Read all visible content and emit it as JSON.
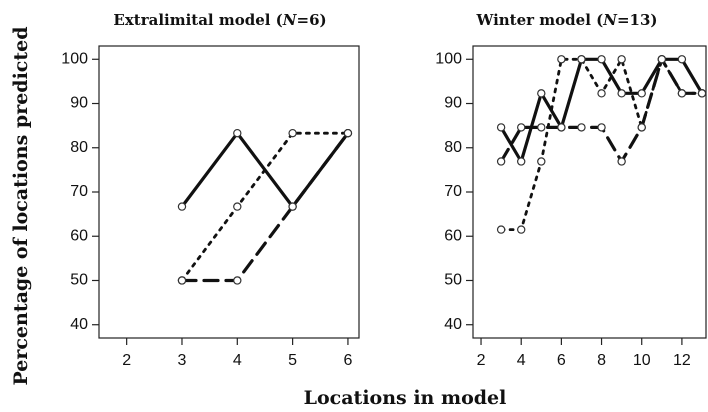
{
  "figure": {
    "ylabel": "Percentage of locations predicted",
    "xlabel": "Locations in model"
  },
  "chart_data": [
    {
      "type": "line",
      "title_prefix": "Extralimital model (",
      "title_n": "N",
      "title_suffix": "=6)",
      "xlim": [
        1.5,
        6.2
      ],
      "ylim": [
        37,
        103
      ],
      "xticks": [
        2,
        3,
        4,
        5,
        6
      ],
      "yticks": [
        40,
        50,
        60,
        70,
        80,
        90,
        100
      ],
      "series": [
        {
          "style": "solid",
          "x": [
            3,
            4,
            5,
            6
          ],
          "y": [
            66.7,
            83.3,
            66.7,
            83.3
          ]
        },
        {
          "style": "dotted",
          "x": [
            3,
            4,
            5,
            6
          ],
          "y": [
            50,
            66.7,
            83.3,
            83.3
          ]
        },
        {
          "style": "dashed",
          "x": [
            3,
            4,
            5,
            6
          ],
          "y": [
            50,
            50,
            66.7,
            83.3
          ]
        }
      ]
    },
    {
      "type": "line",
      "title_prefix": "Winter model (",
      "title_n": "N",
      "title_suffix": "=13)",
      "xlim": [
        1.6,
        13.2
      ],
      "ylim": [
        37,
        103
      ],
      "xticks": [
        2,
        4,
        6,
        8,
        10,
        12
      ],
      "yticks": [
        40,
        50,
        60,
        70,
        80,
        90,
        100
      ],
      "series": [
        {
          "style": "solid",
          "x": [
            3,
            4,
            5,
            6,
            7,
            8,
            9,
            10,
            11,
            12,
            13
          ],
          "y": [
            84.6,
            76.9,
            92.3,
            84.6,
            100,
            100,
            92.3,
            92.3,
            100,
            100,
            92.3
          ]
        },
        {
          "style": "dotted",
          "x": [
            3,
            4,
            5,
            6,
            7,
            8,
            9,
            10,
            11,
            12,
            13
          ],
          "y": [
            61.5,
            61.5,
            76.9,
            100,
            100,
            92.3,
            100,
            84.6,
            100,
            92.3,
            92.3
          ]
        },
        {
          "style": "dashed",
          "x": [
            3,
            4,
            5,
            6,
            7,
            8,
            9,
            10,
            11,
            12,
            13
          ],
          "y": [
            76.9,
            84.6,
            84.6,
            84.6,
            84.6,
            84.6,
            76.9,
            84.6,
            100,
            92.3,
            92.3
          ]
        }
      ]
    }
  ]
}
